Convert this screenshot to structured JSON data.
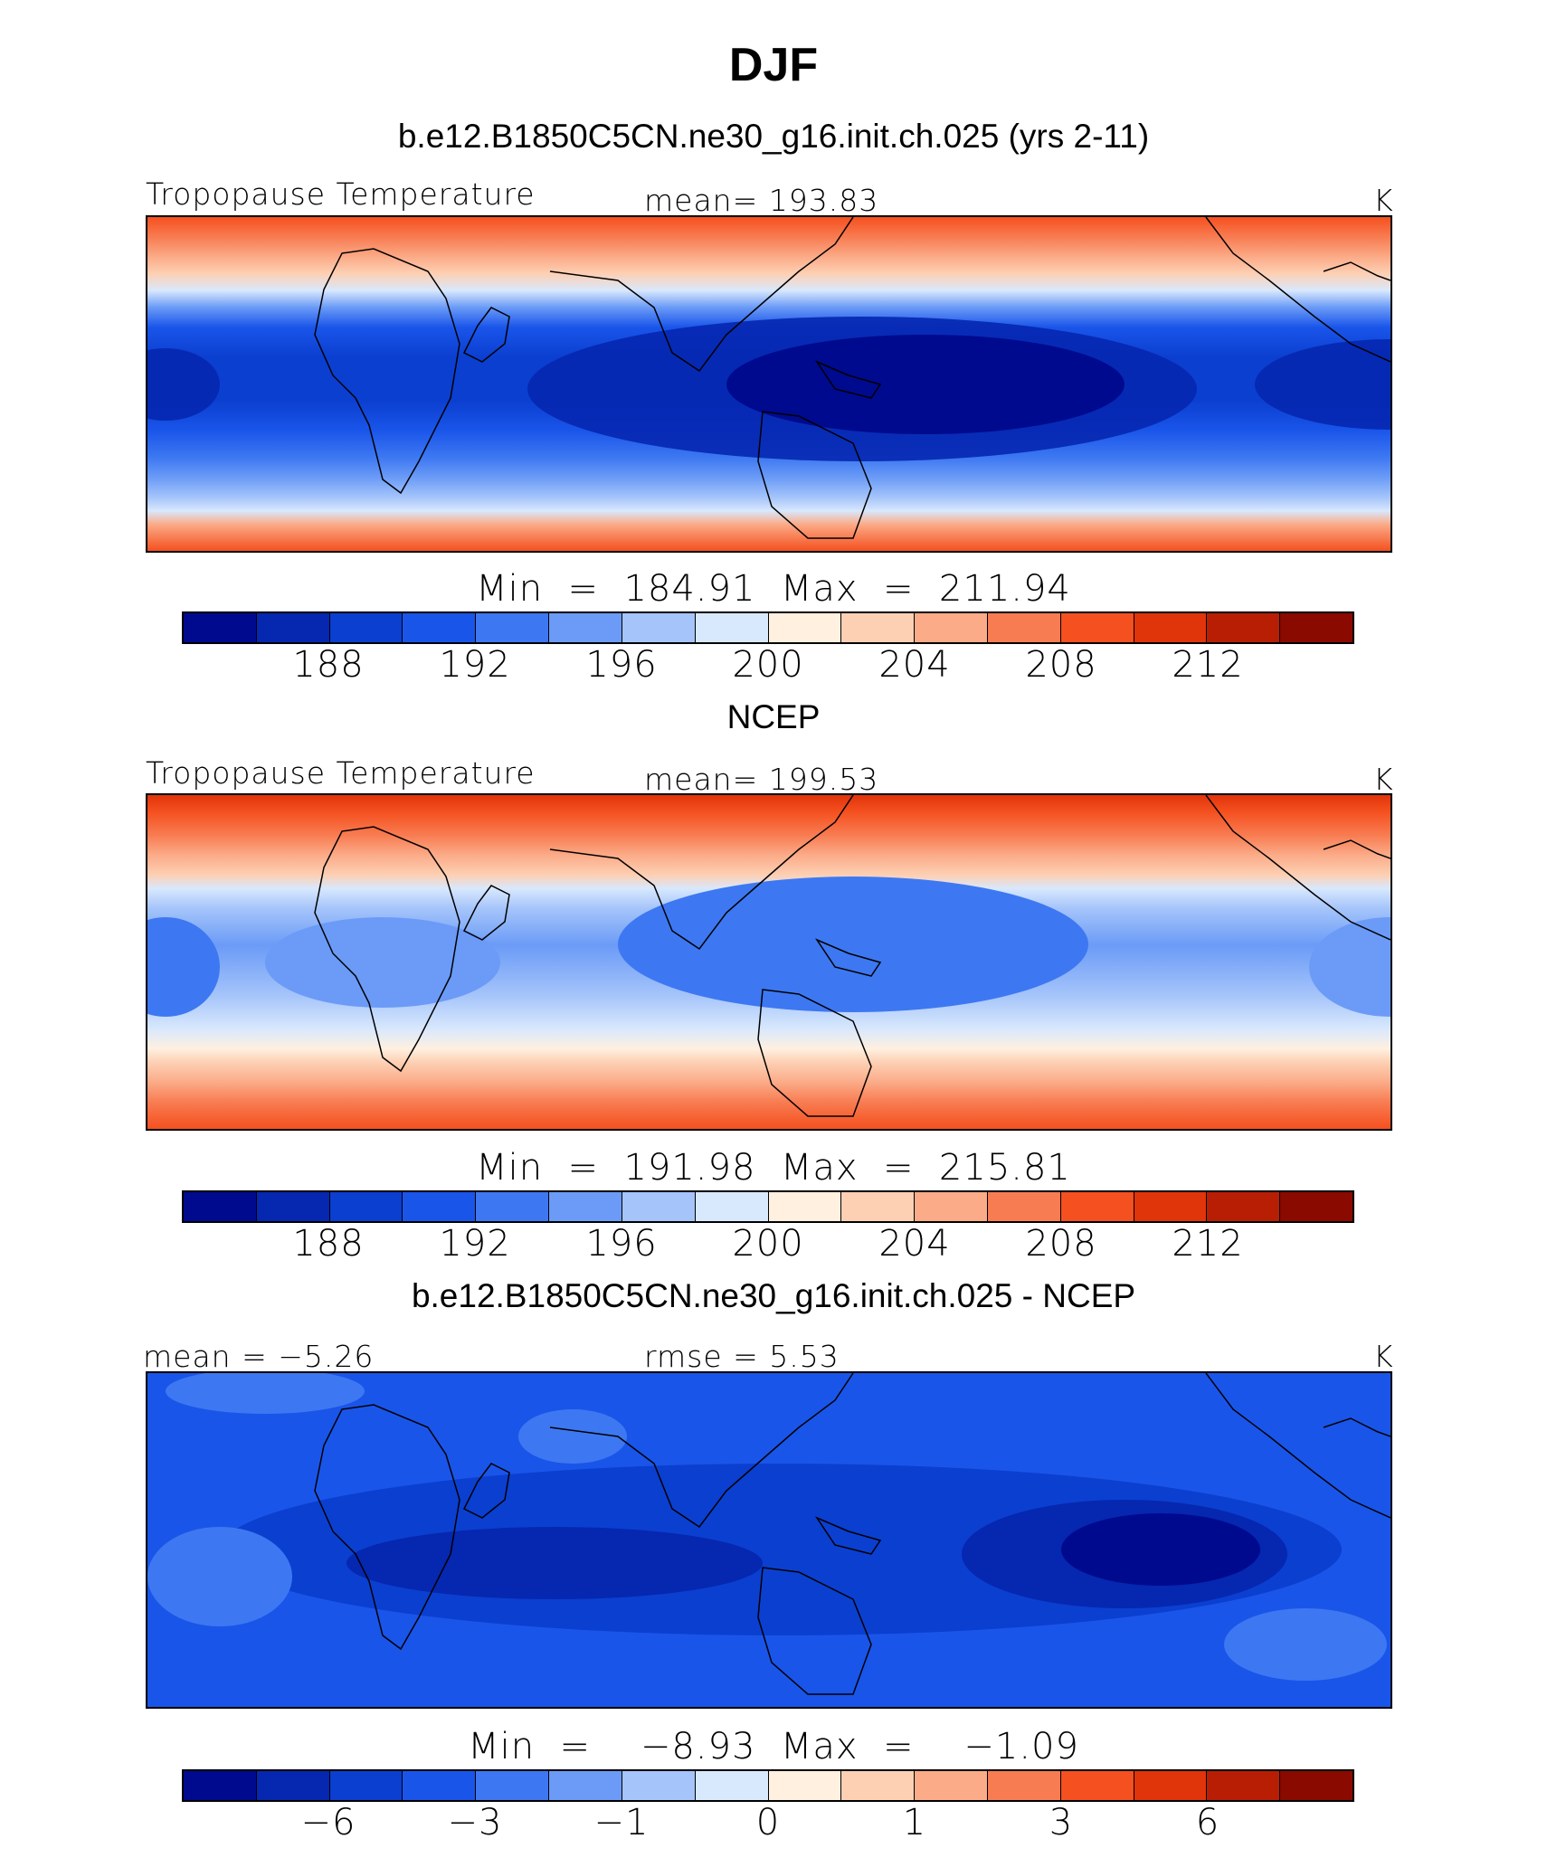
{
  "title": "DJF",
  "panels": [
    {
      "case_title": "b.e12.B1850C5CN.ne30_g16.init.ch.025 (yrs 2-11)",
      "left_label": "Tropopause Temperature",
      "center_label": "mean=  193.83",
      "units": "K",
      "min_max": "Min  =  184.91  Max  =  211.94",
      "colorbar_ticks": [
        "188",
        "192",
        "196",
        "200",
        "204",
        "208",
        "212"
      ]
    },
    {
      "case_title": "NCEP",
      "left_label": "Tropopause Temperature",
      "center_label": "mean=  199.53",
      "units": "K",
      "min_max": "Min  =  191.98  Max  =  215.81",
      "colorbar_ticks": [
        "188",
        "192",
        "196",
        "200",
        "204",
        "208",
        "212"
      ]
    },
    {
      "case_title": "b.e12.B1850C5CN.ne30_g16.init.ch.025 - NCEP",
      "left_label": "mean =   −5.26",
      "center_label": "rmse =     5.53",
      "units": "K",
      "min_max": "Min  =    −8.93  Max  =    −1.09",
      "colorbar_ticks": [
        "−6",
        "−3",
        "−1",
        "0",
        "1",
        "3",
        "6"
      ]
    }
  ],
  "colorbar_colors": [
    "#000a8e",
    "#0627b0",
    "#0b3fd0",
    "#1a55ea",
    "#3d78f2",
    "#6b9bf7",
    "#a5c4fa",
    "#d8e8fd",
    "#fff0e0",
    "#fdd0b4",
    "#fbab88",
    "#f87c52",
    "#f5501f",
    "#e0340a",
    "#b81e04",
    "#8a0a00"
  ]
}
